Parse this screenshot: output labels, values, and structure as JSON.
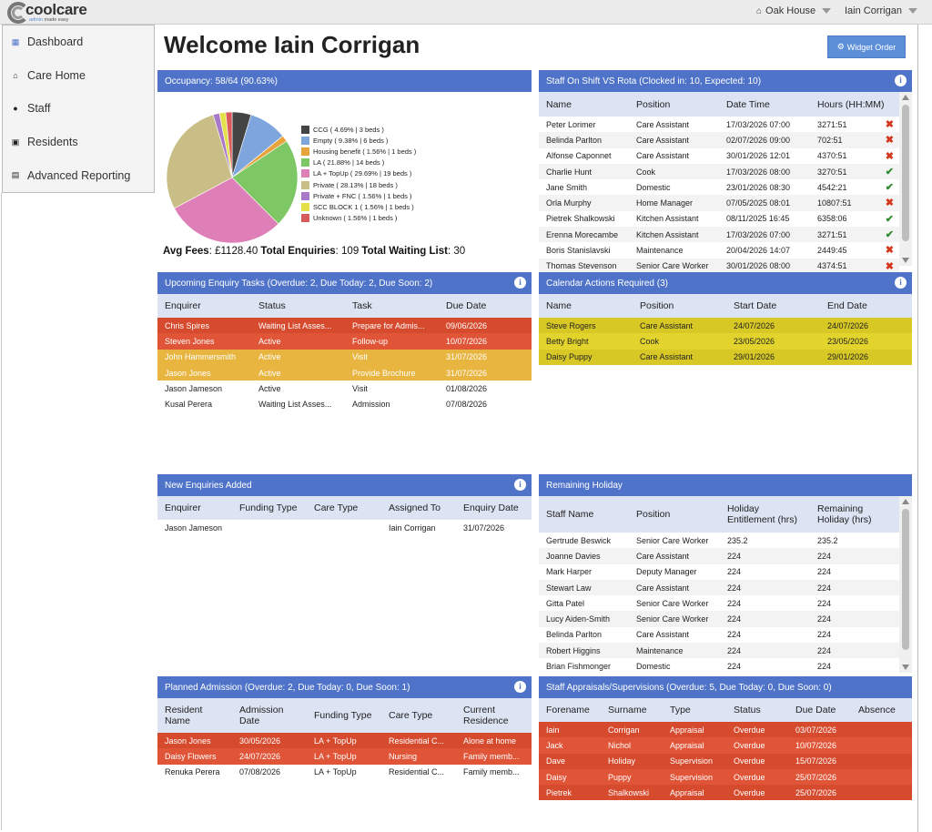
{
  "header": {
    "logo_word": "coolcare",
    "logo_tagline_a": "admin",
    "logo_tagline_b": " made easy",
    "home_name": "Oak House",
    "user_name": "Iain Corrigan"
  },
  "sidebar": {
    "items": [
      {
        "label": "Dashboard",
        "icon": "grid-icon"
      },
      {
        "label": "Care Home",
        "icon": "home-icon"
      },
      {
        "label": "Staff",
        "icon": "users-icon"
      },
      {
        "label": "Residents",
        "icon": "resident-icon"
      },
      {
        "label": "Advanced Reporting",
        "icon": "chart-icon"
      }
    ]
  },
  "main": {
    "title": "Welcome Iain Corrigan",
    "widget_order_label": "Widget Order"
  },
  "occupancy": {
    "title": "Occupancy: 58/64 (90.63%)",
    "avg_fees_label": "Avg Fees",
    "avg_fees_value": ": £1128.40 ",
    "enquiries_label": "Total Enquiries",
    "enquiries_value": ": 109 ",
    "waiting_label": "Total Waiting List",
    "waiting_value": ": 30"
  },
  "chart_data": {
    "type": "pie",
    "slices": [
      {
        "label": "CCG ( 4.69% | 3 beds )",
        "value": 4.69,
        "color": "#444444"
      },
      {
        "label": "Empty ( 9.38% | 6 beds )",
        "value": 9.38,
        "color": "#7ea6dd"
      },
      {
        "label": "Housing benefit ( 1.56% | 1 beds )",
        "value": 1.56,
        "color": "#e8a33c"
      },
      {
        "label": "LA ( 21.88% | 14 beds )",
        "value": 21.88,
        "color": "#7ec765"
      },
      {
        "label": "LA + TopUp ( 29.69% | 19 beds )",
        "value": 29.69,
        "color": "#df7fb8"
      },
      {
        "label": "Private ( 28.13% | 18 beds )",
        "value": 28.13,
        "color": "#c8be86"
      },
      {
        "label": "Private + FNC ( 1.56% | 1 beds )",
        "value": 1.56,
        "color": "#a879c8"
      },
      {
        "label": "SCC BLOCK 1 ( 1.56% | 1 beds )",
        "value": 1.56,
        "color": "#e3e04a"
      },
      {
        "label": "Unknown ( 1.56% | 1 beds )",
        "value": 1.56,
        "color": "#d85a5a"
      }
    ],
    "order_clockwise_from_top": [
      0,
      1,
      2,
      3,
      4,
      5,
      6,
      7,
      8
    ]
  },
  "staff_shift": {
    "title": "Staff On Shift VS Rota (Clocked in: 10, Expected: 10)",
    "columns": [
      "Name",
      "Position",
      "Date Time",
      "Hours (HH:MM)"
    ],
    "rows": [
      {
        "name": "Peter Lorimer",
        "position": "Care Assistant",
        "datetime": "17/03/2026 07:00",
        "hours": "3271:51",
        "status": "x"
      },
      {
        "name": "Belinda Parlton",
        "position": "Care Assistant",
        "datetime": "02/07/2026 09:00",
        "hours": "702:51",
        "status": "x"
      },
      {
        "name": "Alfonse Caponnet",
        "position": "Care Assistant",
        "datetime": "30/01/2026 12:01",
        "hours": "4370:51",
        "status": "x"
      },
      {
        "name": "Charlie Hunt",
        "position": "Cook",
        "datetime": "17/03/2026 08:00",
        "hours": "3270:51",
        "status": "ok"
      },
      {
        "name": "Jane Smith",
        "position": "Domestic",
        "datetime": "23/01/2026 08:30",
        "hours": "4542:21",
        "status": "ok"
      },
      {
        "name": "Orla Murphy",
        "position": "Home Manager",
        "datetime": "07/05/2025 08:01",
        "hours": "10807:51",
        "status": "x"
      },
      {
        "name": "Pietrek Shalkowski",
        "position": "Kitchen Assistant",
        "datetime": "08/11/2025 16:45",
        "hours": "6358:06",
        "status": "ok"
      },
      {
        "name": "Erenna Morecambe",
        "position": "Kitchen Assistant",
        "datetime": "17/03/2026 07:00",
        "hours": "3271:51",
        "status": "ok"
      },
      {
        "name": "Boris Stanislavski",
        "position": "Maintenance",
        "datetime": "20/04/2026 14:07",
        "hours": "2449:45",
        "status": "x"
      },
      {
        "name": "Thomas Stevenson",
        "position": "Senior Care Worker",
        "datetime": "30/01/2026 08:00",
        "hours": "4374:51",
        "status": "x"
      }
    ],
    "mark_x": "✖",
    "mark_ok": "✔"
  },
  "enquiry_tasks": {
    "title": "Upcoming Enquiry Tasks (Overdue: 2, Due Today: 2, Due Soon: 2)",
    "columns": [
      "Enquirer",
      "Status",
      "Task",
      "Due Date"
    ],
    "rows": [
      {
        "enquirer": "Chris Spires",
        "status": "Waiting List Asses...",
        "task": "Prepare for Admis...",
        "due": "09/06/2026",
        "tone": "red"
      },
      {
        "enquirer": "Steven Jones",
        "status": "Active",
        "task": "Follow-up",
        "due": "10/07/2026",
        "tone": "red2"
      },
      {
        "enquirer": "John Hammersmith",
        "status": "Active",
        "task": "Visit",
        "due": "31/07/2026",
        "tone": "amber"
      },
      {
        "enquirer": "Jason Jones",
        "status": "Active",
        "task": "Provide Brochure",
        "due": "31/07/2026",
        "tone": "amber"
      },
      {
        "enquirer": "Jason Jameson",
        "status": "Active",
        "task": "Visit",
        "due": "01/08/2026",
        "tone": ""
      },
      {
        "enquirer": "Kusal Perera",
        "status": "Waiting List Asses...",
        "task": "Admission",
        "due": "07/08/2026",
        "tone": ""
      }
    ]
  },
  "calendar_actions": {
    "title": "Calendar Actions Required (3)",
    "columns": [
      "Name",
      "Position",
      "Start Date",
      "End Date"
    ],
    "rows": [
      {
        "name": "Steve Rogers",
        "position": "Care Assistant",
        "start": "24/07/2026",
        "end": "24/07/2026",
        "tone": "yellow"
      },
      {
        "name": "Betty Bright",
        "position": "Cook",
        "start": "23/05/2026",
        "end": "23/05/2026",
        "tone": "yellow2"
      },
      {
        "name": "Daisy Puppy",
        "position": "Care Assistant",
        "start": "29/01/2026",
        "end": "29/01/2026",
        "tone": "yellow"
      }
    ]
  },
  "new_enquiries": {
    "title": "New Enquiries Added",
    "columns": [
      "Enquirer",
      "Funding Type",
      "Care Type",
      "Assigned To",
      "Enquiry Date"
    ],
    "rows": [
      {
        "enquirer": "Jason Jameson",
        "funding": "",
        "care": "",
        "assigned": "Iain Corrigan",
        "date": "31/07/2026"
      }
    ]
  },
  "remaining_holiday": {
    "title": "Remaining Holiday",
    "columns": [
      "Staff Name",
      "Position",
      "Holiday Entitlement (hrs)",
      "Remaining Holiday (hrs)"
    ],
    "rows": [
      {
        "name": "Gertrude Beswick",
        "position": "Senior Care Worker",
        "entitlement": "235.2",
        "remaining": "235.2"
      },
      {
        "name": "Joanne Davies",
        "position": "Care Assistant",
        "entitlement": "224",
        "remaining": "224"
      },
      {
        "name": "Mark Harper",
        "position": "Deputy Manager",
        "entitlement": "224",
        "remaining": "224"
      },
      {
        "name": "Stewart Law",
        "position": "Care Assistant",
        "entitlement": "224",
        "remaining": "224"
      },
      {
        "name": "Gitta Patel",
        "position": "Senior Care Worker",
        "entitlement": "224",
        "remaining": "224"
      },
      {
        "name": "Lucy Aiden-Smith",
        "position": "Senior Care Worker",
        "entitlement": "224",
        "remaining": "224"
      },
      {
        "name": "Belinda Parlton",
        "position": "Care Assistant",
        "entitlement": "224",
        "remaining": "224"
      },
      {
        "name": "Robert Higgins",
        "position": "Maintenance",
        "entitlement": "224",
        "remaining": "224"
      },
      {
        "name": "Brian Fishmonger",
        "position": "Domestic",
        "entitlement": "224",
        "remaining": "224"
      }
    ]
  },
  "planned_admission": {
    "title": "Planned Admission (Overdue: 2, Due Today: 0, Due Soon: 1)",
    "columns": [
      "Resident Name",
      "Admission Date",
      "Funding Type",
      "Care Type",
      "Current Residence"
    ],
    "rows": [
      {
        "name": "Jason Jones",
        "date": "30/05/2026",
        "funding": "LA + TopUp",
        "care": "Residential C...",
        "residence": "Alone at home",
        "tone": "red"
      },
      {
        "name": "Daisy Flowers",
        "date": "24/07/2026",
        "funding": "LA + TopUp",
        "care": "Nursing",
        "residence": "Family memb...",
        "tone": "red2"
      },
      {
        "name": "Renuka Perera",
        "date": "07/08/2026",
        "funding": "LA + TopUp",
        "care": "Residential C...",
        "residence": "Family memb...",
        "tone": ""
      }
    ]
  },
  "appraisals": {
    "title": "Staff Appraisals/Supervisions (Overdue: 5, Due Today: 0, Due Soon: 0)",
    "columns": [
      "Forename",
      "Surname",
      "Type",
      "Status",
      "Due Date",
      "Absence"
    ],
    "rows": [
      {
        "forename": "Iain",
        "surname": "Corrigan",
        "type": "Appraisal",
        "status": "Overdue",
        "due": "03/07/2026",
        "absence": ""
      },
      {
        "forename": "Jack",
        "surname": "Nichol",
        "type": "Appraisal",
        "status": "Overdue",
        "due": "10/07/2026",
        "absence": ""
      },
      {
        "forename": "Dave",
        "surname": "Holiday",
        "type": "Supervision",
        "status": "Overdue",
        "due": "15/07/2026",
        "absence": ""
      },
      {
        "forename": "Daisy",
        "surname": "Puppy",
        "type": "Supervision",
        "status": "Overdue",
        "due": "25/07/2026",
        "absence": ""
      },
      {
        "forename": "Pietrek",
        "surname": "Shalkowski",
        "type": "Appraisal",
        "status": "Overdue",
        "due": "25/07/2026",
        "absence": ""
      }
    ]
  }
}
